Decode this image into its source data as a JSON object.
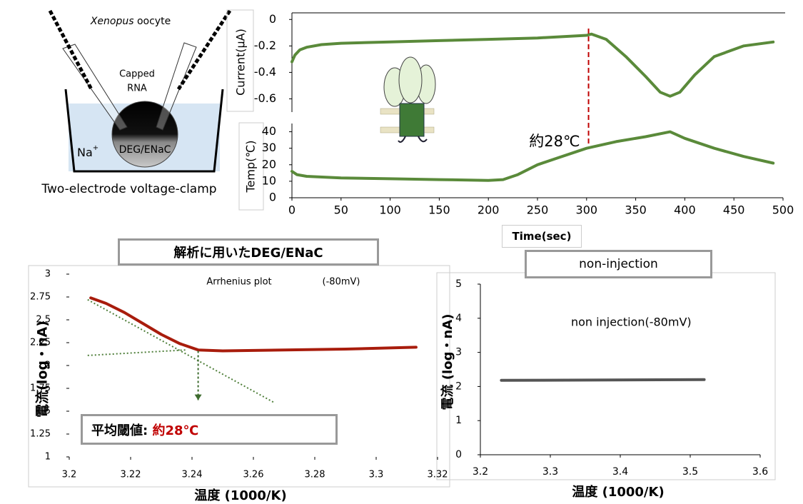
{
  "diagram": {
    "organism": "Xenopus",
    "organism_rest": "oocyte",
    "rna_line1": "Capped",
    "rna_line2": "RNA",
    "ion": "Na",
    "ion_charge": "+",
    "channel": "DEG/ENaC",
    "caption": "Two-electrode voltage-clamp"
  },
  "chart_data": [
    {
      "type": "line",
      "y_label": "Current(μA)",
      "x": [
        0,
        3,
        8,
        15,
        30,
        50,
        100,
        150,
        200,
        250,
        300,
        305,
        320,
        340,
        360,
        375,
        385,
        395,
        410,
        430,
        460,
        490
      ],
      "series": [
        {
          "color": "#5a8a3a",
          "values": [
            -0.32,
            -0.27,
            -0.23,
            -0.21,
            -0.19,
            -0.18,
            -0.17,
            -0.16,
            -0.15,
            -0.14,
            -0.12,
            -0.11,
            -0.15,
            -0.28,
            -0.43,
            -0.55,
            -0.58,
            -0.55,
            -0.42,
            -0.28,
            -0.2,
            -0.17
          ]
        }
      ],
      "xlim": [
        0,
        500
      ],
      "ylim": [
        -0.7,
        0.05
      ],
      "yticks": [
        0,
        -0.2,
        -0.4,
        -0.6
      ],
      "marker": {
        "x": 302,
        "color": "#c00000"
      },
      "annotation": "約28℃"
    },
    {
      "type": "line",
      "y_label": "Temp(℃)",
      "x_label": "Time(sec)",
      "x": [
        0,
        5,
        15,
        50,
        100,
        150,
        200,
        215,
        230,
        250,
        270,
        300,
        330,
        360,
        385,
        400,
        430,
        460,
        490
      ],
      "series": [
        {
          "color": "#5a8a3a",
          "values": [
            16,
            14,
            13,
            12,
            11.5,
            11,
            10.5,
            11,
            14,
            20,
            24,
            30,
            34,
            37,
            40,
            36,
            30,
            25,
            21
          ]
        }
      ],
      "xlim": [
        0,
        500
      ],
      "xticks": [
        0,
        50,
        100,
        150,
        200,
        250,
        300,
        350,
        400,
        450,
        500
      ],
      "ylim": [
        0,
        45
      ],
      "yticks": [
        0,
        10,
        20,
        30,
        40
      ]
    },
    {
      "type": "line",
      "title": "解析に用いたDEG/ENaC",
      "subtitle": "Arrhenius plot",
      "note": "(-80mV)",
      "y_label": "電流(log・nA)",
      "x_label": "温度 (1000/K)",
      "x": [
        3.207,
        3.212,
        3.218,
        3.224,
        3.23,
        3.236,
        3.242,
        3.25,
        3.27,
        3.29,
        3.313
      ],
      "series": [
        {
          "color": "#a81c0c",
          "values": [
            2.74,
            2.68,
            2.58,
            2.46,
            2.34,
            2.24,
            2.17,
            2.16,
            2.17,
            2.18,
            2.2
          ]
        }
      ],
      "fit_lines": [
        {
          "color": "#4f7f3a",
          "x": [
            3.206,
            3.267
          ],
          "values": [
            2.72,
            1.59
          ]
        },
        {
          "color": "#4f7f3a",
          "x": [
            3.206,
            3.238
          ],
          "values": [
            2.11,
            2.17
          ]
        }
      ],
      "threshold_arrow": {
        "x": 3.242,
        "from": 2.16,
        "to": 1.62,
        "color": "#3d6b2e"
      },
      "threshold_label": "平均閾値:",
      "threshold_value": "約28℃",
      "xlim": [
        3.2,
        3.32
      ],
      "xticks": [
        3.2,
        3.22,
        3.24,
        3.26,
        3.28,
        3.3,
        3.32
      ],
      "ylim": [
        1,
        3
      ],
      "yticks": [
        1,
        1.25,
        1.5,
        1.75,
        2,
        2.25,
        2.5,
        2.75,
        3
      ]
    },
    {
      "type": "line",
      "title": "non-injection",
      "note": "non injection(-80mV)",
      "y_label": "電流 (log・nA)",
      "x_label": "温度 (1000/K)",
      "x": [
        3.23,
        3.52
      ],
      "series": [
        {
          "color": "#555555",
          "values": [
            2.18,
            2.2
          ]
        }
      ],
      "xlim": [
        3.2,
        3.6
      ],
      "xticks": [
        3.2,
        3.3,
        3.4,
        3.5,
        3.6
      ],
      "ylim": [
        0,
        5
      ],
      "yticks": [
        0,
        1,
        2,
        3,
        4,
        5
      ]
    }
  ]
}
